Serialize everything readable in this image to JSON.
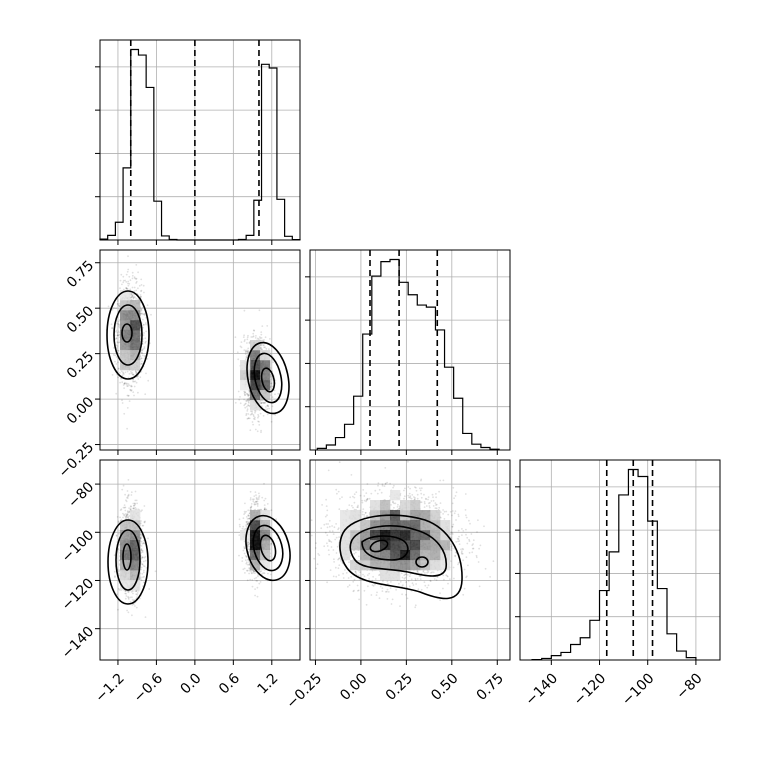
{
  "chart_data": {
    "type": "corner",
    "params": [
      {
        "ticks": [
          -1.2,
          -0.6,
          0.0,
          0.6,
          1.2
        ],
        "range": [
          -1.48,
          1.64
        ]
      },
      {
        "ticks": [
          -0.25,
          0.0,
          0.25,
          0.5,
          0.75
        ],
        "range": [
          -0.28,
          0.82
        ]
      },
      {
        "ticks": [
          -140,
          -120,
          -100,
          -80
        ],
        "range": [
          -153,
          -70
        ]
      }
    ],
    "tick_labels": [
      [
        "−1.2",
        "−0.6",
        "0.0",
        "0.6",
        "1.2"
      ],
      [
        "−0.25",
        "0.00",
        "0.25",
        "0.50",
        "0.75"
      ],
      [
        "−140",
        "−120",
        "−100",
        "−80"
      ]
    ],
    "histograms": [
      {
        "param": 0,
        "edges": [
          -1.48,
          -1.36,
          -1.24,
          -1.12,
          -1.0,
          -0.88,
          -0.76,
          -0.64,
          -0.52,
          -0.4,
          -0.28,
          -0.16,
          -0.04,
          0.08,
          0.2,
          0.32,
          0.44,
          0.56,
          0.68,
          0.8,
          0.92,
          1.04,
          1.16,
          1.28,
          1.4,
          1.52,
          1.64
        ],
        "counts": [
          5,
          25,
          96,
          390,
          1030,
          1000,
          825,
          210,
          22,
          3,
          0,
          0,
          0,
          0,
          0,
          0,
          0,
          0,
          3,
          25,
          215,
          950,
          930,
          220,
          20,
          2
        ],
        "quantile_lines": [
          -1.0,
          0.0,
          1.0
        ]
      },
      {
        "param": 1,
        "edges": [
          -0.24,
          -0.19,
          -0.14,
          -0.09,
          -0.04,
          0.01,
          0.06,
          0.11,
          0.16,
          0.21,
          0.26,
          0.31,
          0.36,
          0.41,
          0.46,
          0.51,
          0.56,
          0.61,
          0.66,
          0.71,
          0.76
        ],
        "counts": [
          4,
          12,
          30,
          62,
          130,
          280,
          420,
          455,
          460,
          405,
          375,
          350,
          345,
          290,
          200,
          125,
          40,
          14,
          6,
          2
        ],
        "quantile_lines": [
          0.05,
          0.21,
          0.42
        ]
      },
      {
        "param": 2,
        "edges": [
          -148,
          -144,
          -140,
          -136,
          -132,
          -128,
          -124,
          -120,
          -116,
          -112,
          -108,
          -104,
          -100,
          -96,
          -92,
          -88,
          -84,
          -80
        ],
        "counts": [
          2,
          8,
          22,
          38,
          78,
          112,
          200,
          350,
          545,
          832,
          960,
          925,
          700,
          360,
          132,
          45,
          12
        ],
        "quantile_lines": [
          -117,
          -106,
          -98
        ]
      }
    ],
    "scatter_2d": [
      {
        "x_param": 0,
        "y_param": 1,
        "clusters": [
          {
            "mean": [
              -1.0,
              0.36
            ],
            "sd": [
              0.1,
              0.13
            ],
            "n": 1400
          },
          {
            "mean": [
              0.97,
              0.13
            ],
            "sd": [
              0.1,
              0.1
            ],
            "n": 1400
          }
        ]
      },
      {
        "x_param": 0,
        "y_param": 2,
        "clusters": [
          {
            "mean": [
              -1.0,
              -108
            ],
            "sd": [
              0.09,
              9
            ],
            "n": 1400
          },
          {
            "mean": [
              0.97,
              -103
            ],
            "sd": [
              0.09,
              7
            ],
            "n": 1400
          }
        ]
      },
      {
        "x_param": 1,
        "y_param": 2,
        "clusters": [
          {
            "mean": [
              0.2,
              -103
            ],
            "sd": [
              0.16,
              9
            ],
            "n": 2800
          }
        ]
      }
    ],
    "grid": true
  }
}
